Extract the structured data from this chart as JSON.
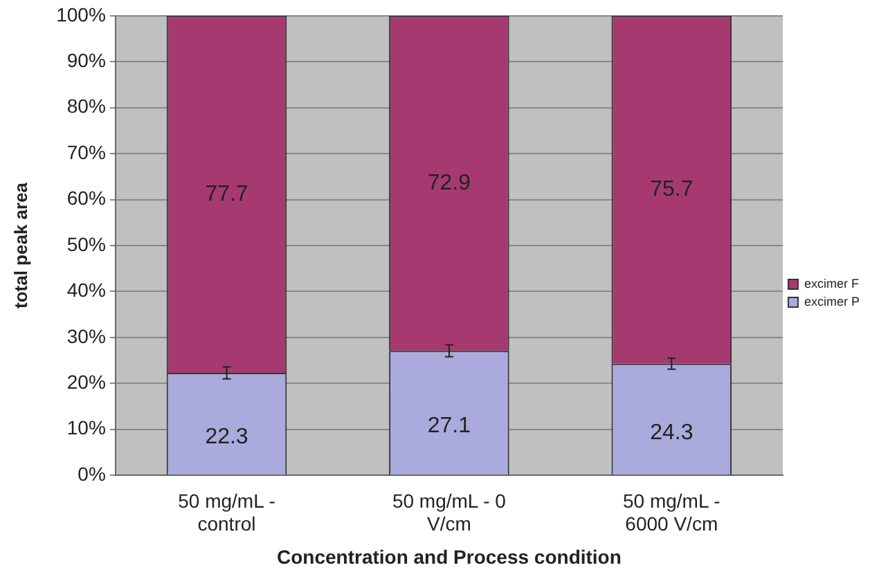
{
  "chart_data": {
    "type": "bar",
    "stacked": true,
    "xlabel": "Concentration and Process condition",
    "ylabel": "total peak area",
    "categories": [
      "50 mg/mL - control",
      "50 mg/mL - 0 V/cm",
      "50 mg/mL - 6000 V/cm"
    ],
    "series": [
      {
        "name": "excimer P",
        "color": "#aaaadc",
        "values": [
          22.3,
          27.1,
          24.3
        ],
        "errors": [
          1.3,
          1.3,
          1.2
        ]
      },
      {
        "name": "excimer F",
        "color": "#a63a70",
        "values": [
          77.7,
          72.9,
          75.7
        ]
      }
    ],
    "ylim": [
      0,
      100
    ],
    "yticks": [
      {
        "value": 0,
        "label": "0%"
      },
      {
        "value": 10,
        "label": "10%"
      },
      {
        "value": 20,
        "label": "20%"
      },
      {
        "value": 30,
        "label": "30%"
      },
      {
        "value": 40,
        "label": "40%"
      },
      {
        "value": 50,
        "label": "50%"
      },
      {
        "value": 60,
        "label": "60%"
      },
      {
        "value": 70,
        "label": "70%"
      },
      {
        "value": 80,
        "label": "80%"
      },
      {
        "value": 90,
        "label": "90%"
      },
      {
        "value": 100,
        "label": "100%"
      }
    ],
    "grid": "y",
    "legend": "right",
    "data_labels": true
  }
}
